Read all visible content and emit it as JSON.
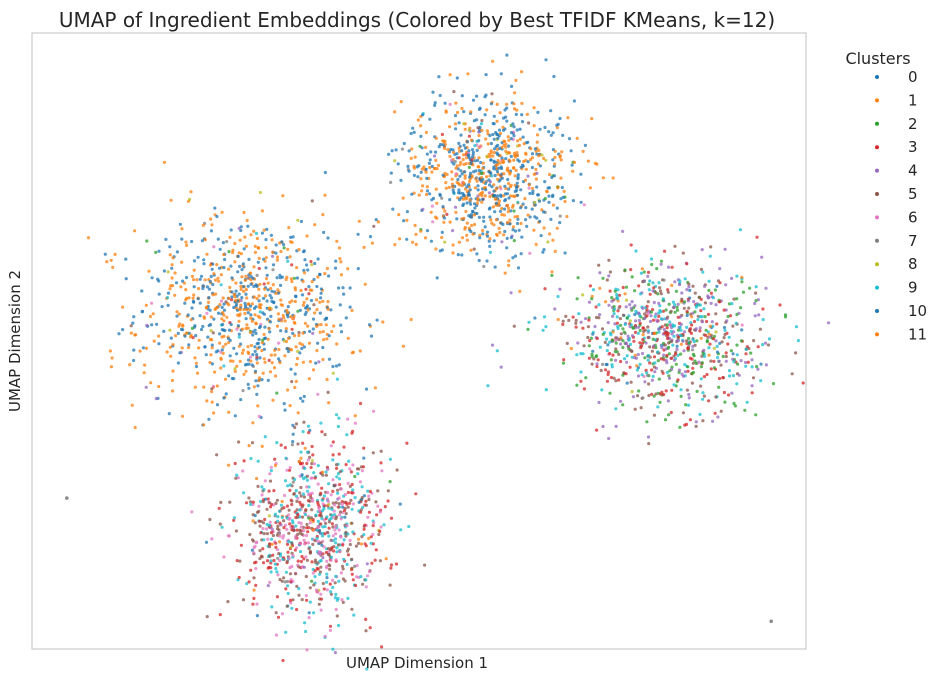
{
  "chart_data": {
    "type": "scatter",
    "title": "UMAP of Ingredient Embeddings (Colored by Best TFIDF KMeans, k=12)",
    "xlabel": "UMAP Dimension 1",
    "ylabel": "UMAP Dimension 2",
    "xlim": [
      0,
      100
    ],
    "ylim": [
      0,
      100
    ],
    "grid": false,
    "ticks_visible": false,
    "legend": {
      "title": "Clusters",
      "placement": "outside-right-top",
      "entries": [
        {
          "label": "0",
          "color": "#1f77b4"
        },
        {
          "label": "1",
          "color": "#ff7f0e"
        },
        {
          "label": "2",
          "color": "#2ca02c"
        },
        {
          "label": "3",
          "color": "#d62728"
        },
        {
          "label": "4",
          "color": "#9467bd"
        },
        {
          "label": "5",
          "color": "#8c564b"
        },
        {
          "label": "6",
          "color": "#e377c2"
        },
        {
          "label": "7",
          "color": "#7f7f7f"
        },
        {
          "label": "8",
          "color": "#bcbd22"
        },
        {
          "label": "9",
          "color": "#17becf"
        },
        {
          "label": "10",
          "color": "#1f77b4"
        },
        {
          "label": "11",
          "color": "#ff7f0e"
        }
      ]
    },
    "clusters_in_plot": [
      {
        "region": "left-large",
        "center": [
          28,
          55
        ],
        "spread": [
          9,
          10
        ],
        "dominant": [
          "0",
          "10",
          "1",
          "11"
        ]
      },
      {
        "region": "top-center",
        "center": [
          59,
          77
        ],
        "spread": [
          7,
          8
        ],
        "dominant": [
          "1",
          "11",
          "0",
          "10"
        ]
      },
      {
        "region": "right",
        "center": [
          82,
          51
        ],
        "spread": [
          8,
          7
        ],
        "dominant": [
          "4",
          "5",
          "3",
          "2",
          "9"
        ]
      },
      {
        "region": "bottom-left",
        "center": [
          36,
          20
        ],
        "spread": [
          6,
          9
        ],
        "dominant": [
          "6",
          "3",
          "5",
          "9"
        ]
      }
    ],
    "outliers": [
      {
        "x": 4.5,
        "y": 24.5,
        "cluster": "7"
      },
      {
        "x": 95.5,
        "y": 4.5,
        "cluster": "7"
      }
    ]
  }
}
